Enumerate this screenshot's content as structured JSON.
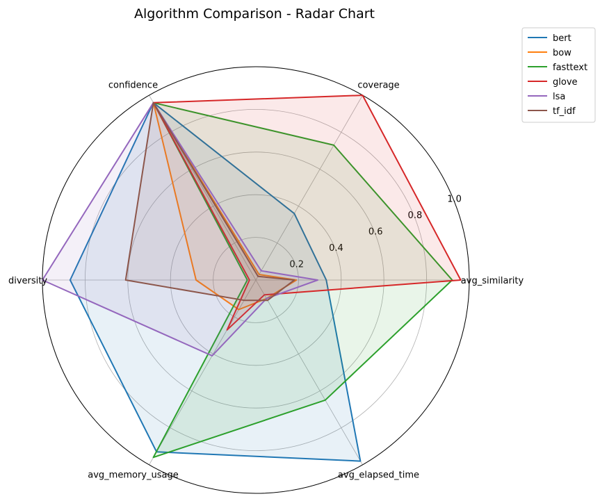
{
  "chart_data": {
    "type": "radar",
    "title": "Algorithm Comparison - Radar Chart",
    "axes": [
      "avg_similarity",
      "coverage",
      "confidence",
      "diversity",
      "avg_memory_usage",
      "avg_elapsed_time"
    ],
    "rlim": [
      0,
      1.0
    ],
    "rticks": [
      "0.2",
      "0.4",
      "0.6",
      "0.8",
      "1.0"
    ],
    "grid": true,
    "legend_position": "top-right, outside plot",
    "series": [
      {
        "name": "bert",
        "color": "#1f77b4",
        "values": [
          0.33,
          0.36,
          0.96,
          0.87,
          0.93,
          0.98
        ]
      },
      {
        "name": "bow",
        "color": "#ff7f0e",
        "values": [
          0.19,
          0.03,
          0.96,
          0.28,
          0.16,
          0.1
        ]
      },
      {
        "name": "fasttext",
        "color": "#2ca02c",
        "values": [
          0.92,
          0.73,
          0.96,
          0.04,
          0.96,
          0.65
        ]
      },
      {
        "name": "glove",
        "color": "#d62728",
        "values": [
          0.96,
          1.0,
          0.96,
          0.03,
          0.27,
          0.08
        ]
      },
      {
        "name": "lsa",
        "color": "#9467bd",
        "values": [
          0.29,
          0.05,
          0.96,
          1.0,
          0.41,
          0.1
        ]
      },
      {
        "name": "tf_idf",
        "color": "#8c564b",
        "values": [
          0.18,
          0.02,
          0.96,
          0.61,
          0.11,
          0.11
        ]
      }
    ]
  }
}
